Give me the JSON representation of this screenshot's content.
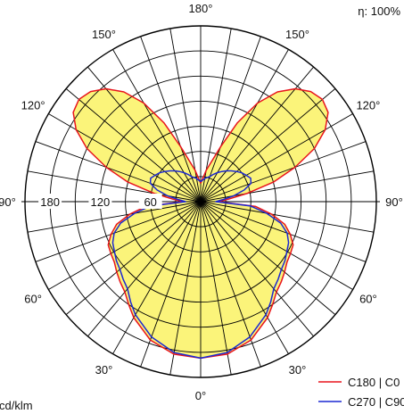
{
  "chart_data": {
    "type": "polar",
    "efficiency_label": "η: 100%",
    "unit_label": "cd/klm",
    "rings": [
      30,
      60,
      90,
      120,
      150,
      180,
      210
    ],
    "ring_labels": [
      "60",
      "120",
      "180"
    ],
    "angle_labels": [
      {
        "text": "180°",
        "deg": 180,
        "side": "top"
      },
      {
        "text": "150°",
        "deg": 150,
        "side": "left"
      },
      {
        "text": "150°",
        "deg": 150,
        "side": "right"
      },
      {
        "text": "120°",
        "deg": 120,
        "side": "left"
      },
      {
        "text": "120°",
        "deg": 120,
        "side": "right"
      },
      {
        "text": "90°",
        "deg": 90,
        "side": "left"
      },
      {
        "text": "90°",
        "deg": 90,
        "side": "right"
      },
      {
        "text": "60°",
        "deg": 60,
        "side": "left"
      },
      {
        "text": "60°",
        "deg": 60,
        "side": "right"
      },
      {
        "text": "30°",
        "deg": 30,
        "side": "left"
      },
      {
        "text": "30°",
        "deg": 30,
        "side": "right"
      },
      {
        "text": "0°",
        "deg": 0,
        "side": "bottom"
      }
    ],
    "angles": [
      0,
      10,
      20,
      30,
      35,
      40,
      45,
      50,
      55,
      60,
      65,
      70,
      75,
      80,
      85,
      90,
      95,
      100,
      105,
      110,
      115,
      120,
      125,
      130,
      135,
      140,
      145,
      150,
      155,
      160,
      170,
      180
    ],
    "series": [
      {
        "name": "C180 | C0",
        "color": "#e8141c",
        "values": [
          187,
          185,
          176,
          160,
          150,
          141,
          136,
          131,
          126,
          124,
          122,
          114,
          104,
          86,
          66,
          20,
          33,
          56,
          90,
          120,
          150,
          172,
          186,
          190,
          186,
          176,
          160,
          136,
          104,
          70,
          38,
          22
        ]
      },
      {
        "name": "C270 | C90",
        "color": "#1c28d2",
        "values": [
          187,
          183,
          172,
          156,
          146,
          136,
          131,
          126,
          123,
          119,
          116,
          110,
          99,
          80,
          60,
          18,
          26,
          40,
          54,
          64,
          66,
          63,
          60,
          56,
          52,
          48,
          44,
          40,
          36,
          32,
          28,
          24
        ]
      }
    ],
    "fill_color": "#fbf47a"
  }
}
